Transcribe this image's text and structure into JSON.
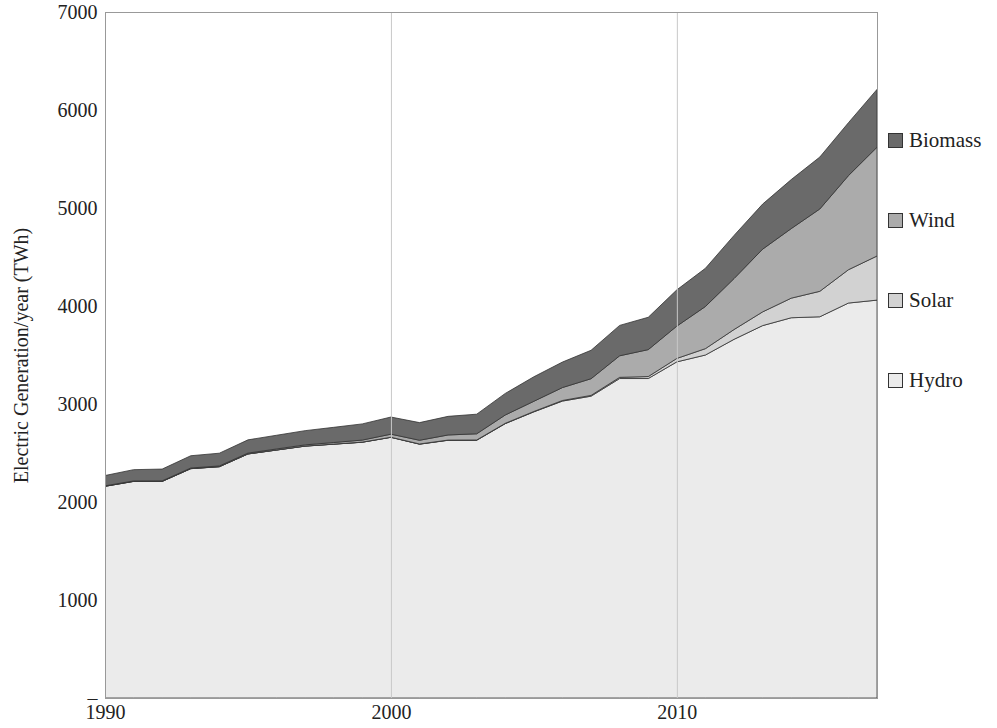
{
  "chart_data": {
    "type": "area",
    "stacked": true,
    "grid": "x",
    "legend": "right",
    "y_label": "Electric Generation/year (TWh)",
    "x": [
      1990,
      1991,
      1992,
      1993,
      1994,
      1995,
      1996,
      1997,
      1998,
      1999,
      2000,
      2001,
      2002,
      2003,
      2004,
      2005,
      2006,
      2007,
      2008,
      2009,
      2010,
      2011,
      2012,
      2013,
      2014,
      2015,
      2016,
      2017
    ],
    "xlim": [
      1990,
      2017
    ],
    "xticks": [
      1990,
      2000,
      2010
    ],
    "ylim": [
      0,
      7000
    ],
    "yticks": [
      {
        "value": 0,
        "label": "–"
      },
      1000,
      2000,
      3000,
      4000,
      5000,
      6000,
      7000
    ],
    "series": [
      {
        "name": "Hydro",
        "color": "#ebebeb",
        "values": [
          2160,
          2210,
          2210,
          2340,
          2360,
          2490,
          2530,
          2570,
          2590,
          2610,
          2660,
          2590,
          2630,
          2630,
          2800,
          2920,
          3030,
          3080,
          3260,
          3260,
          3430,
          3500,
          3660,
          3800,
          3880,
          3890,
          4030,
          4060
        ]
      },
      {
        "name": "Solar",
        "color": "#d2d2d2",
        "values": [
          1,
          1,
          1,
          1,
          1,
          1,
          1,
          1,
          1,
          1,
          1,
          2,
          2,
          3,
          3,
          4,
          6,
          8,
          12,
          20,
          35,
          65,
          100,
          140,
          200,
          260,
          340,
          450
        ]
      },
      {
        "name": "Wind",
        "color": "#ababab",
        "values": [
          4,
          4,
          5,
          6,
          7,
          8,
          10,
          12,
          16,
          21,
          31,
          38,
          52,
          63,
          85,
          104,
          132,
          170,
          220,
          275,
          330,
          430,
          520,
          640,
          710,
          840,
          960,
          1110
        ]
      },
      {
        "name": "Biomass",
        "color": "#6a6a6a",
        "values": [
          105,
          115,
          120,
          125,
          130,
          135,
          140,
          145,
          155,
          165,
          175,
          180,
          190,
          200,
          220,
          250,
          260,
          290,
          310,
          330,
          370,
          390,
          440,
          460,
          500,
          530,
          540,
          590
        ]
      }
    ]
  }
}
